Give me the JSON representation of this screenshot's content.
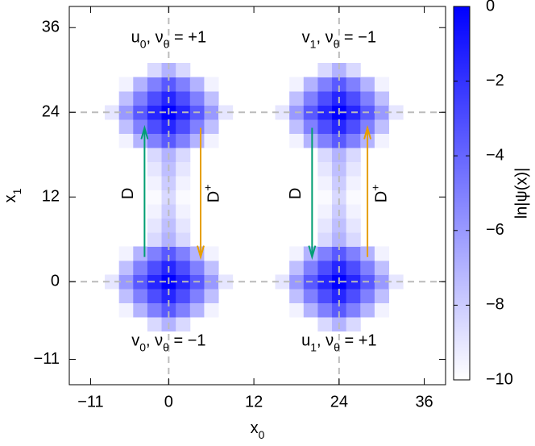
{
  "chart_data": {
    "type": "heatmap",
    "xlabel": [
      {
        "text": "x"
      },
      {
        "text": "0",
        "sub": true
      }
    ],
    "ylabel": [
      {
        "text": "x"
      },
      {
        "text": "1",
        "sub": true
      }
    ],
    "xlim": [
      -14,
      39
    ],
    "ylim": [
      -14.6,
      39
    ],
    "xticks": [
      {
        "value": -11,
        "label": "−11"
      },
      0,
      12,
      24,
      36
    ],
    "yticks": [
      {
        "value": -11,
        "label": "−11"
      },
      0,
      12,
      24,
      36
    ],
    "ref_lines": {
      "x": [
        0,
        24
      ],
      "y": [
        0,
        24
      ],
      "color": "#bbbbbb"
    },
    "heatmap": {
      "x": [
        -8,
        -6,
        -4,
        -2,
        0,
        2,
        4,
        6,
        8,
        10,
        12,
        14,
        16,
        18,
        20,
        22,
        24,
        26,
        28,
        30,
        32
      ],
      "y": [
        -6,
        -4,
        -2,
        0,
        2,
        4,
        6,
        8,
        10,
        12,
        14,
        16,
        18,
        20,
        22,
        24,
        26,
        28,
        30
      ],
      "z": [
        [
          null,
          null,
          null,
          -8.5,
          -7,
          -8.5,
          null,
          null,
          null,
          null,
          null,
          null,
          null,
          null,
          null,
          -8.5,
          -7,
          -8.5,
          null,
          null,
          null
        ],
        [
          null,
          -9.5,
          -7,
          -5,
          -3.5,
          -5,
          -7,
          -9.5,
          null,
          null,
          null,
          null,
          null,
          -9.5,
          -7,
          -5,
          -3.5,
          -5,
          -7,
          -9.5,
          null
        ],
        [
          null,
          -7.5,
          -5,
          -3,
          -1.5,
          -3,
          -5,
          -7.5,
          null,
          null,
          null,
          null,
          null,
          -7.5,
          -5,
          -3,
          -1.5,
          -3,
          -5,
          -7.5,
          null
        ],
        [
          -9,
          -6,
          -3.5,
          -1.5,
          0,
          -1.5,
          -3.5,
          -6,
          -9,
          null,
          null,
          null,
          -9,
          -6,
          -3.5,
          -1.5,
          0,
          -1.5,
          -3.5,
          -6,
          -9
        ],
        [
          null,
          -7.5,
          -5,
          -3,
          -1.5,
          -3,
          -5,
          -7.5,
          null,
          null,
          null,
          null,
          null,
          -7.5,
          -5,
          -3,
          -1.5,
          -3,
          -5,
          -7.5,
          null
        ],
        [
          null,
          -9.5,
          -7,
          -5,
          -3.5,
          -5,
          -7,
          -9.5,
          null,
          null,
          null,
          null,
          null,
          -9.5,
          -7,
          -5,
          -3.5,
          -5,
          -7,
          -9.5,
          null
        ],
        [
          null,
          null,
          null,
          -8.5,
          -7,
          -8.5,
          null,
          null,
          null,
          null,
          null,
          null,
          null,
          null,
          null,
          -8.5,
          -7,
          -8.5,
          null,
          null,
          null
        ],
        [
          null,
          null,
          null,
          -9,
          -7.5,
          -9,
          null,
          null,
          null,
          null,
          null,
          null,
          null,
          null,
          null,
          -9,
          -7.5,
          -9,
          null,
          null,
          null
        ],
        [
          null,
          null,
          null,
          -9.5,
          -8,
          -9.5,
          null,
          null,
          null,
          null,
          null,
          null,
          null,
          null,
          null,
          -9.5,
          -8,
          -9.5,
          null,
          null,
          null
        ],
        [
          null,
          null,
          null,
          -9.8,
          -8.5,
          -9.8,
          null,
          null,
          null,
          null,
          null,
          null,
          null,
          null,
          null,
          -9.8,
          -8.5,
          -9.8,
          null,
          null,
          null
        ],
        [
          null,
          null,
          null,
          -9.5,
          -8,
          -9.5,
          null,
          null,
          null,
          null,
          null,
          null,
          null,
          null,
          null,
          -9.5,
          -8,
          -9.5,
          null,
          null,
          null
        ],
        [
          null,
          null,
          null,
          -9,
          -7.5,
          -9,
          null,
          null,
          null,
          null,
          null,
          null,
          null,
          null,
          null,
          -9,
          -7.5,
          -9,
          null,
          null,
          null
        ],
        [
          null,
          null,
          null,
          -8.5,
          -7,
          -8.5,
          null,
          null,
          null,
          null,
          null,
          null,
          null,
          null,
          null,
          -8.5,
          -7,
          -8.5,
          null,
          null,
          null
        ],
        [
          null,
          -9.5,
          -7,
          -5,
          -3.5,
          -5,
          -7,
          -9.5,
          null,
          null,
          null,
          null,
          null,
          -9.5,
          -7,
          -5,
          -3.5,
          -5,
          -7,
          -9.5,
          null
        ],
        [
          null,
          -7.5,
          -5,
          -3,
          -1.5,
          -3,
          -5,
          -7.5,
          null,
          null,
          null,
          null,
          null,
          -7.5,
          -5,
          -3,
          -1.5,
          -3,
          -5,
          -7.5,
          null
        ],
        [
          -9,
          -6,
          -3.5,
          -1.5,
          0,
          -1.5,
          -3.5,
          -6,
          -9,
          null,
          null,
          null,
          -9,
          -6,
          -3.5,
          -1.5,
          0,
          -1.5,
          -3.5,
          -6,
          -9
        ],
        [
          null,
          -7.5,
          -5,
          -3,
          -1.5,
          -3,
          -5,
          -7.5,
          null,
          null,
          null,
          null,
          null,
          -7.5,
          -5,
          -3,
          -1.5,
          -3,
          -5,
          -7.5,
          null
        ],
        [
          null,
          -9.5,
          -7,
          -5,
          -3.5,
          -5,
          -7,
          -9.5,
          null,
          null,
          null,
          null,
          null,
          -9.5,
          -7,
          -5,
          -3.5,
          -5,
          -7,
          -9.5,
          null
        ],
        [
          null,
          null,
          null,
          -8.5,
          -7,
          -8.5,
          null,
          null,
          null,
          null,
          null,
          null,
          null,
          null,
          null,
          -8.5,
          -7,
          -8.5,
          null,
          null,
          null
        ]
      ]
    },
    "colorbar": {
      "label": "ln|ψ(x)|",
      "clim": [
        -10,
        0
      ],
      "colors": [
        "#ffffff",
        "#0000ff"
      ],
      "ticks": [
        0,
        {
          "value": -2,
          "label": "−2"
        },
        {
          "value": -4,
          "label": "−4"
        },
        {
          "value": -6,
          "label": "−6"
        },
        {
          "value": -8,
          "label": "−8"
        },
        {
          "value": -10,
          "label": "−10"
        }
      ]
    },
    "annotations": [
      {
        "x": 0,
        "y": 34.5,
        "parts": [
          {
            "text": "u"
          },
          {
            "text": "0",
            "sub": true
          },
          {
            "text": ", ν"
          },
          {
            "text": "θ",
            "sub": true
          },
          {
            "text": " = +1"
          }
        ]
      },
      {
        "x": 24,
        "y": 34.5,
        "parts": [
          {
            "text": "v"
          },
          {
            "text": "1",
            "sub": true
          },
          {
            "text": ", ν"
          },
          {
            "text": "θ",
            "sub": true
          },
          {
            "text": " = −1"
          }
        ]
      },
      {
        "x": 0,
        "y": -8.5,
        "parts": [
          {
            "text": "v"
          },
          {
            "text": "0",
            "sub": true
          },
          {
            "text": ", ν"
          },
          {
            "text": "θ",
            "sub": true
          },
          {
            "text": " = −1"
          }
        ]
      },
      {
        "x": 24,
        "y": -8.5,
        "parts": [
          {
            "text": "u"
          },
          {
            "text": "1",
            "sub": true
          },
          {
            "text": ", ν"
          },
          {
            "text": "θ",
            "sub": true
          },
          {
            "text": " = +1"
          }
        ]
      }
    ],
    "arrows": [
      {
        "from": [
          -3.4,
          3.5
        ],
        "to": [
          -3.4,
          21.8
        ],
        "color": "#009e73",
        "label_at": [
          -5.6,
          12.5
        ],
        "label": [
          {
            "text": "D"
          }
        ]
      },
      {
        "from": [
          4.5,
          21.8
        ],
        "to": [
          4.5,
          3.5
        ],
        "color": "#e69f00",
        "label_at": [
          6.5,
          12.5
        ],
        "label": [
          {
            "text": "D"
          },
          {
            "text": "+",
            "sup": true
          }
        ]
      },
      {
        "from": [
          20.2,
          21.8
        ],
        "to": [
          20.2,
          3.5
        ],
        "color": "#009e73",
        "label_at": [
          18,
          12.5
        ],
        "label": [
          {
            "text": "D"
          }
        ]
      },
      {
        "from": [
          28,
          3.5
        ],
        "to": [
          28,
          21.8
        ],
        "color": "#e69f00",
        "label_at": [
          30.1,
          12.5
        ],
        "label": [
          {
            "text": "D"
          },
          {
            "text": "+",
            "sup": true
          }
        ]
      }
    ]
  }
}
